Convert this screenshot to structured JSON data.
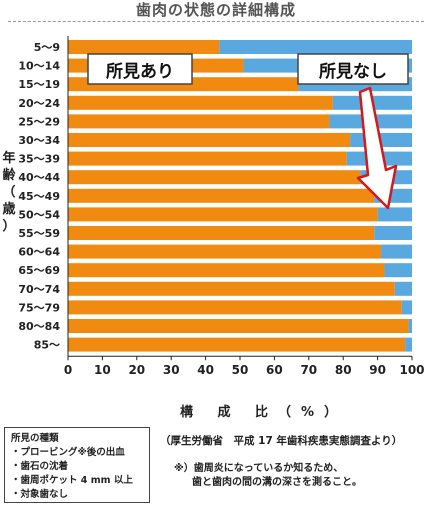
{
  "title": "歯肉の状態の詳細構成",
  "chart_data": {
    "type": "bar",
    "orientation": "horizontal",
    "stacked": true,
    "categories": [
      "5～9",
      "10～14",
      "15～19",
      "20～24",
      "25～29",
      "30～34",
      "35～39",
      "40～44",
      "45～49",
      "50～54",
      "55～59",
      "60～64",
      "65～69",
      "70～74",
      "75～79",
      "80～84",
      "85～"
    ],
    "series": [
      {
        "name": "所見あり",
        "values": [
          44,
          51,
          67,
          77,
          76,
          82,
          81,
          85,
          89,
          90,
          89,
          91,
          92,
          95,
          97,
          99,
          98
        ]
      },
      {
        "name": "所見なし",
        "values": [
          56,
          49,
          33,
          23,
          24,
          18,
          19,
          15,
          11,
          10,
          11,
          9,
          8,
          5,
          3,
          1,
          2
        ]
      }
    ],
    "xlabel": "構 成 比（%）",
    "ylabel": [
      "年",
      "齢",
      "（",
      "歳",
      "）"
    ],
    "xticks": [
      "0",
      "10",
      "20",
      "30",
      "40",
      "50",
      "60",
      "70",
      "80",
      "90",
      "100"
    ],
    "xlim": [
      0,
      100
    ],
    "grid": false,
    "colors": {
      "yes": "#f08a10",
      "no": "#5aa8e0"
    }
  },
  "source": "（厚生労働省　平成 17 年歯科疾患実態調査より）",
  "note": [
    "※）歯周炎になっているか知るため、",
    "歯と歯肉の間の溝の深さを測ること。"
  ],
  "legend_box": {
    "heading": "所見の種類",
    "items": [
      "・プロービング※後の出血",
      "・歯石の沈着",
      "・歯周ポケット 4 mm 以上",
      "・対象歯なし"
    ]
  }
}
